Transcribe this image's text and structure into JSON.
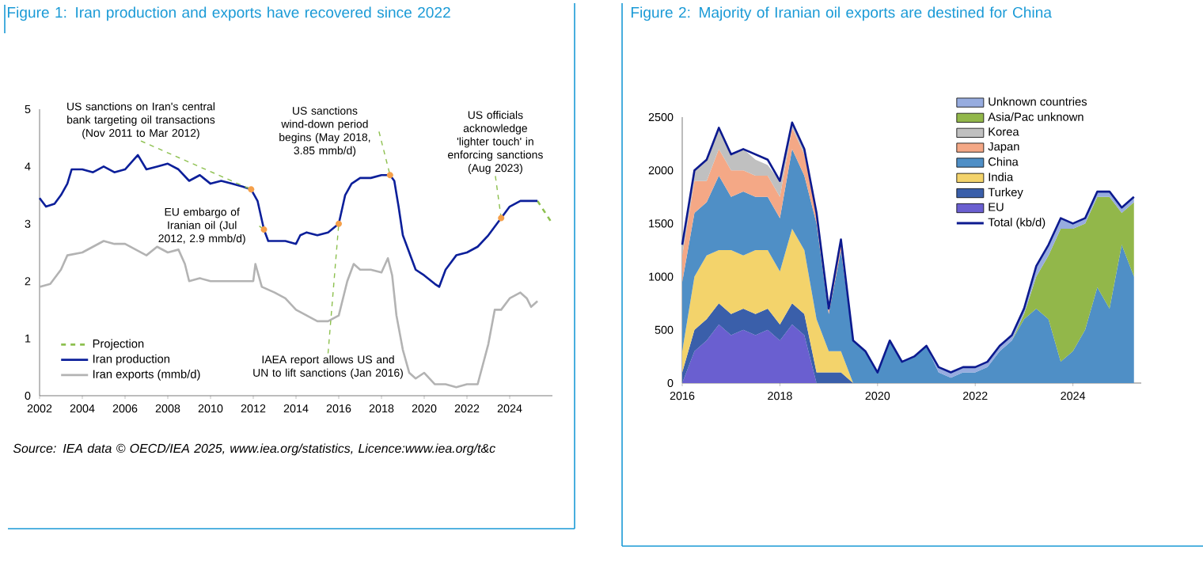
{
  "chart_data": [
    {
      "type": "line",
      "title": "Figure 1: Iran production and exports have recovered since 2022",
      "xlim": [
        2002,
        2026
      ],
      "xticks": [
        2002,
        2004,
        2006,
        2008,
        2010,
        2012,
        2014,
        2016,
        2018,
        2020,
        2022,
        2024
      ],
      "ylim": [
        0,
        5
      ],
      "yticks": [
        0,
        1,
        2,
        3,
        4,
        5
      ],
      "legend": "bottom left",
      "series": [
        {
          "name": "Projection",
          "color": "#8dc04f",
          "line_style": "dashed",
          "x": [
            2025.3,
            2026.0
          ],
          "values": [
            3.4,
            3.0
          ]
        },
        {
          "name": "Iran production",
          "color": "#0c1f9a",
          "x": [
            2002.0,
            2002.3,
            2002.7,
            2003.0,
            2003.3,
            2003.5,
            2004.0,
            2004.5,
            2005.0,
            2005.5,
            2006.0,
            2006.6,
            2007.0,
            2007.5,
            2008.0,
            2008.5,
            2009.0,
            2009.5,
            2010.0,
            2010.5,
            2011.0,
            2011.5,
            2011.9,
            2012.2,
            2012.5,
            2012.7,
            2013.0,
            2013.5,
            2014.0,
            2014.2,
            2014.5,
            2015.0,
            2015.5,
            2016.0,
            2016.3,
            2016.6,
            2017.0,
            2017.5,
            2018.0,
            2018.4,
            2018.6,
            2018.8,
            2019.0,
            2019.3,
            2019.6,
            2020.0,
            2020.5,
            2020.7,
            2021.0,
            2021.5,
            2022.0,
            2022.5,
            2023.0,
            2023.4,
            2023.6,
            2024.0,
            2024.5,
            2025.0,
            2025.3
          ],
          "values": [
            3.45,
            3.3,
            3.35,
            3.5,
            3.7,
            3.95,
            3.95,
            3.9,
            4.0,
            3.9,
            3.95,
            4.2,
            3.95,
            4.0,
            4.05,
            3.95,
            3.75,
            3.85,
            3.7,
            3.75,
            3.7,
            3.65,
            3.6,
            3.4,
            2.9,
            2.7,
            2.7,
            2.7,
            2.65,
            2.8,
            2.85,
            2.8,
            2.85,
            3.0,
            3.5,
            3.7,
            3.8,
            3.8,
            3.85,
            3.85,
            3.75,
            3.3,
            2.8,
            2.5,
            2.2,
            2.1,
            1.95,
            1.9,
            2.2,
            2.45,
            2.5,
            2.6,
            2.8,
            3.0,
            3.1,
            3.3,
            3.4,
            3.4,
            3.4
          ]
        },
        {
          "name": "Iran exports (mmb/d)",
          "color": "#b3b3b3",
          "x": [
            2002.0,
            2002.5,
            2003.0,
            2003.3,
            2004.0,
            2004.5,
            2005.0,
            2005.5,
            2006.0,
            2006.5,
            2007.0,
            2007.5,
            2008.0,
            2008.5,
            2008.8,
            2009.0,
            2009.5,
            2010.0,
            2011.0,
            2012.0,
            2012.1,
            2012.4,
            2013.0,
            2013.5,
            2014.0,
            2014.5,
            2015.0,
            2015.5,
            2016.0,
            2016.4,
            2016.7,
            2017.0,
            2017.5,
            2018.0,
            2018.3,
            2018.5,
            2018.7,
            2019.0,
            2019.3,
            2019.6,
            2020.0,
            2020.5,
            2021.0,
            2021.5,
            2022.0,
            2022.5,
            2023.0,
            2023.3,
            2023.6,
            2024.0,
            2024.5,
            2024.8,
            2025.0,
            2025.3
          ],
          "values": [
            1.9,
            1.95,
            2.2,
            2.45,
            2.5,
            2.6,
            2.7,
            2.65,
            2.65,
            2.55,
            2.45,
            2.6,
            2.5,
            2.55,
            2.3,
            2.0,
            2.05,
            2.0,
            2.0,
            2.0,
            2.3,
            1.9,
            1.8,
            1.7,
            1.5,
            1.4,
            1.3,
            1.3,
            1.4,
            2.0,
            2.3,
            2.2,
            2.2,
            2.15,
            2.4,
            2.1,
            1.4,
            0.8,
            0.4,
            0.3,
            0.4,
            0.2,
            0.2,
            0.15,
            0.2,
            0.2,
            0.9,
            1.5,
            1.5,
            1.7,
            1.8,
            1.7,
            1.55,
            1.65
          ]
        }
      ],
      "annotations": [
        {
          "text": "US sanctions on Iran's central bank targeting oil transactions (Nov 2011 to Mar 2012)",
          "x": 2011.9,
          "y": 3.6
        },
        {
          "text": "EU embargo of Iranian oil (Jul 2012, 2.9 mmb/d)",
          "x": 2012.5,
          "y": 2.9
        },
        {
          "text": "US sanctions wind-down period begins (May 2018, 3.85 mmb/d)",
          "x": 2018.4,
          "y": 3.85
        },
        {
          "text": "IAEA report allows US and UN to lift sanctions (Jan 2016)",
          "x": 2016.0,
          "y": 3.0
        },
        {
          "text": "US officials acknowledge 'lighter touch' in enforcing sanctions (Aug 2023)",
          "x": 2023.6,
          "y": 3.1
        },
        "Source: IEA data © OECD/IEA 2025, www.iea.org/statistics, Licence:www.iea.org/t&c"
      ]
    },
    {
      "type": "area",
      "stacked": true,
      "title": "Figure 2: Majority of Iranian oil exports are destined for China",
      "x": [
        2016.0,
        2016.25,
        2016.5,
        2016.75,
        2017.0,
        2017.25,
        2017.5,
        2017.75,
        2018.0,
        2018.25,
        2018.5,
        2018.75,
        2019.0,
        2019.25,
        2019.5,
        2019.75,
        2020.0,
        2020.25,
        2020.5,
        2020.75,
        2021.0,
        2021.25,
        2021.5,
        2021.75,
        2022.0,
        2022.25,
        2022.5,
        2022.75,
        2023.0,
        2023.25,
        2023.5,
        2023.75,
        2024.0,
        2024.25,
        2024.5,
        2024.75,
        2025.0,
        2025.25
      ],
      "xlim": [
        2016,
        2025.4
      ],
      "xticks": [
        2016,
        2018,
        2020,
        2022,
        2024
      ],
      "ylim": [
        0,
        2500
      ],
      "yticks": [
        0,
        500,
        1000,
        1500,
        2000,
        2500
      ],
      "legend": "top right",
      "series": [
        {
          "name": "EU",
          "color": "#6a5fd0",
          "values": [
            0,
            300,
            400,
            550,
            450,
            500,
            450,
            500,
            400,
            550,
            450,
            0,
            null,
            null,
            null,
            null,
            null,
            null,
            null,
            null,
            null,
            null,
            null,
            null,
            null,
            null,
            null,
            null,
            null,
            null,
            null,
            null,
            null,
            null,
            null,
            null,
            null,
            null
          ]
        },
        {
          "name": "Turkey",
          "color": "#3a5faa",
          "values": [
            100,
            200,
            200,
            200,
            200,
            200,
            200,
            200,
            150,
            200,
            200,
            100,
            100,
            100,
            0,
            null,
            null,
            null,
            null,
            null,
            null,
            null,
            null,
            null,
            null,
            null,
            null,
            null,
            null,
            null,
            null,
            null,
            null,
            null,
            null,
            null,
            null,
            null
          ]
        },
        {
          "name": "India",
          "color": "#f3d36b",
          "values": [
            200,
            500,
            600,
            500,
            600,
            500,
            600,
            550,
            500,
            700,
            600,
            500,
            200,
            200,
            0,
            null,
            null,
            null,
            null,
            null,
            null,
            null,
            null,
            null,
            null,
            null,
            null,
            null,
            null,
            null,
            null,
            null,
            null,
            null,
            null,
            null,
            null,
            null
          ]
        },
        {
          "name": "China",
          "color": "#4f8fc6",
          "values": [
            650,
            600,
            500,
            700,
            500,
            600,
            500,
            500,
            500,
            750,
            700,
            900,
            350,
            950,
            400,
            300,
            100,
            400,
            200,
            250,
            350,
            100,
            50,
            100,
            100,
            150,
            300,
            400,
            600,
            700,
            600,
            200,
            300,
            500,
            900,
            700,
            1300,
            1000
          ]
        },
        {
          "name": "Japan",
          "color": "#f4a886",
          "values": [
            250,
            300,
            200,
            250,
            250,
            200,
            200,
            200,
            200,
            200,
            200,
            100,
            50,
            100,
            0,
            null,
            null,
            null,
            null,
            null,
            null,
            null,
            null,
            null,
            null,
            null,
            null,
            null,
            null,
            null,
            null,
            null,
            null,
            null,
            null,
            null,
            null,
            null
          ]
        },
        {
          "name": "Korea",
          "color": "#c0c0c0",
          "values": [
            100,
            100,
            200,
            200,
            150,
            200,
            150,
            100,
            150,
            50,
            50,
            0,
            null,
            null,
            null,
            null,
            null,
            null,
            null,
            null,
            null,
            null,
            null,
            null,
            null,
            null,
            null,
            null,
            null,
            null,
            null,
            null,
            null,
            null,
            null,
            null,
            null,
            null
          ]
        },
        {
          "name": "Asia/Pac unknown",
          "color": "#92b74a",
          "values": [
            null,
            null,
            null,
            null,
            null,
            null,
            null,
            null,
            null,
            null,
            null,
            null,
            null,
            null,
            null,
            null,
            null,
            null,
            null,
            null,
            null,
            null,
            null,
            null,
            null,
            null,
            null,
            0,
            50,
            300,
            600,
            1250,
            1150,
            1000,
            850,
            1050,
            300,
            700
          ]
        },
        {
          "name": "Unknown countries",
          "color": "#97acdf",
          "values": [
            null,
            null,
            null,
            null,
            null,
            null,
            null,
            null,
            null,
            null,
            null,
            null,
            null,
            null,
            null,
            null,
            null,
            null,
            null,
            null,
            0,
            50,
            50,
            50,
            50,
            50,
            50,
            50,
            50,
            100,
            100,
            100,
            50,
            50,
            50,
            50,
            50,
            50
          ]
        },
        {
          "name": "Total (kb/d)",
          "type": "line",
          "color": "#0c1a8f",
          "values": [
            1300,
            2000,
            2100,
            2400,
            2150,
            2200,
            2150,
            2100,
            1900,
            2450,
            2200,
            1600,
            700,
            1350,
            400,
            300,
            100,
            400,
            200,
            250,
            350,
            150,
            100,
            150,
            150,
            200,
            350,
            450,
            700,
            1100,
            1300,
            1550,
            1500,
            1550,
            1800,
            1800,
            1650,
            1750
          ]
        }
      ]
    }
  ]
}
